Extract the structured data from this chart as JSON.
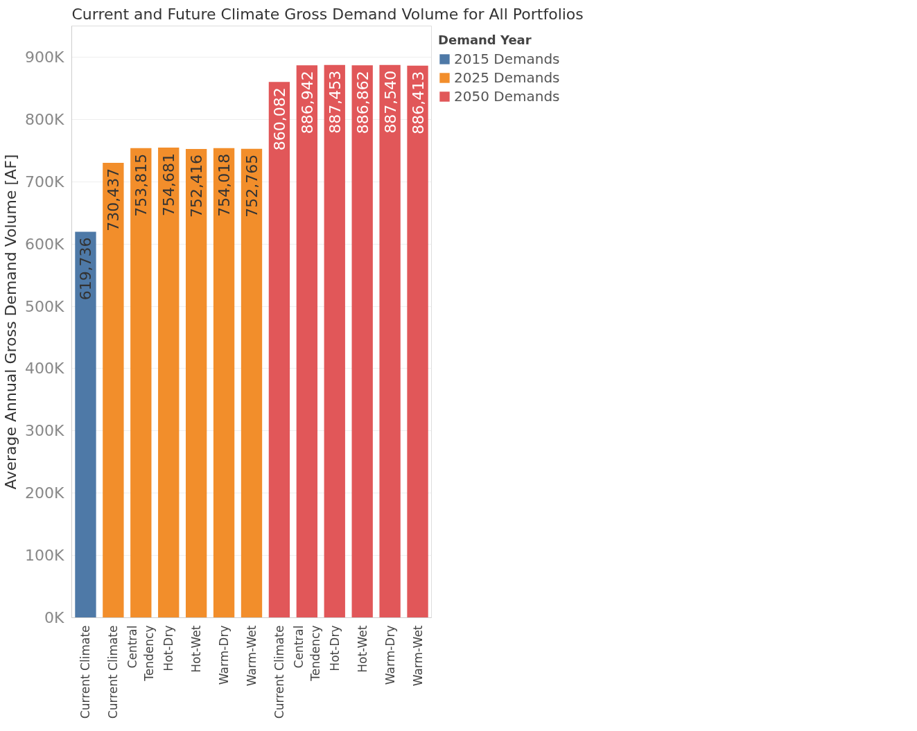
{
  "chart_data": {
    "type": "bar",
    "title": "Current and Future Climate Gross Demand Volume for All Portfolios",
    "ylabel": "Average Annual Gross Demand Volume [AF]",
    "legend_title": "Demand Year",
    "categories": [
      "Current Climate",
      "Current Climate",
      "Central\nTendency",
      "Hot-Dry",
      "Hot-Wet",
      "Warm-Dry",
      "Warm-Wet",
      "Current Climate",
      "Central\nTendency",
      "Hot-Dry",
      "Hot-Wet",
      "Warm-Dry",
      "Warm-Wet"
    ],
    "series": [
      {
        "name": "2015 Demands",
        "color": "#4e79a7",
        "values": [
          619736,
          null,
          null,
          null,
          null,
          null,
          null,
          null,
          null,
          null,
          null,
          null,
          null
        ],
        "value_labels": [
          "619,736",
          null,
          null,
          null,
          null,
          null,
          null,
          null,
          null,
          null,
          null,
          null,
          null
        ]
      },
      {
        "name": "2025 Demands",
        "color": "#f28e2b",
        "values": [
          null,
          730437,
          753815,
          754681,
          752416,
          754018,
          752765,
          null,
          null,
          null,
          null,
          null,
          null
        ],
        "value_labels": [
          null,
          "730,437",
          "753,815",
          "754,681",
          "752,416",
          "754,018",
          "752,765",
          null,
          null,
          null,
          null,
          null,
          null
        ]
      },
      {
        "name": "2050 Demands",
        "color": "#e15759",
        "values": [
          null,
          null,
          null,
          null,
          null,
          null,
          null,
          860082,
          886942,
          887453,
          886862,
          887540,
          886413
        ],
        "value_labels": [
          null,
          null,
          null,
          null,
          null,
          null,
          null,
          "860,082",
          "886,942",
          "887,453",
          "886,862",
          "887,540",
          "886,413"
        ]
      }
    ],
    "ylim": [
      0,
      950000
    ],
    "yticks": [
      {
        "value": 0,
        "label": "0K"
      },
      {
        "value": 100000,
        "label": "100K"
      },
      {
        "value": 200000,
        "label": "200K"
      },
      {
        "value": 300000,
        "label": "300K"
      },
      {
        "value": 400000,
        "label": "400K"
      },
      {
        "value": 500000,
        "label": "500K"
      },
      {
        "value": 600000,
        "label": "600K"
      },
      {
        "value": 700000,
        "label": "700K"
      },
      {
        "value": 800000,
        "label": "800K"
      },
      {
        "value": 900000,
        "label": "900K"
      }
    ],
    "grid": "y",
    "legend": "top right"
  }
}
